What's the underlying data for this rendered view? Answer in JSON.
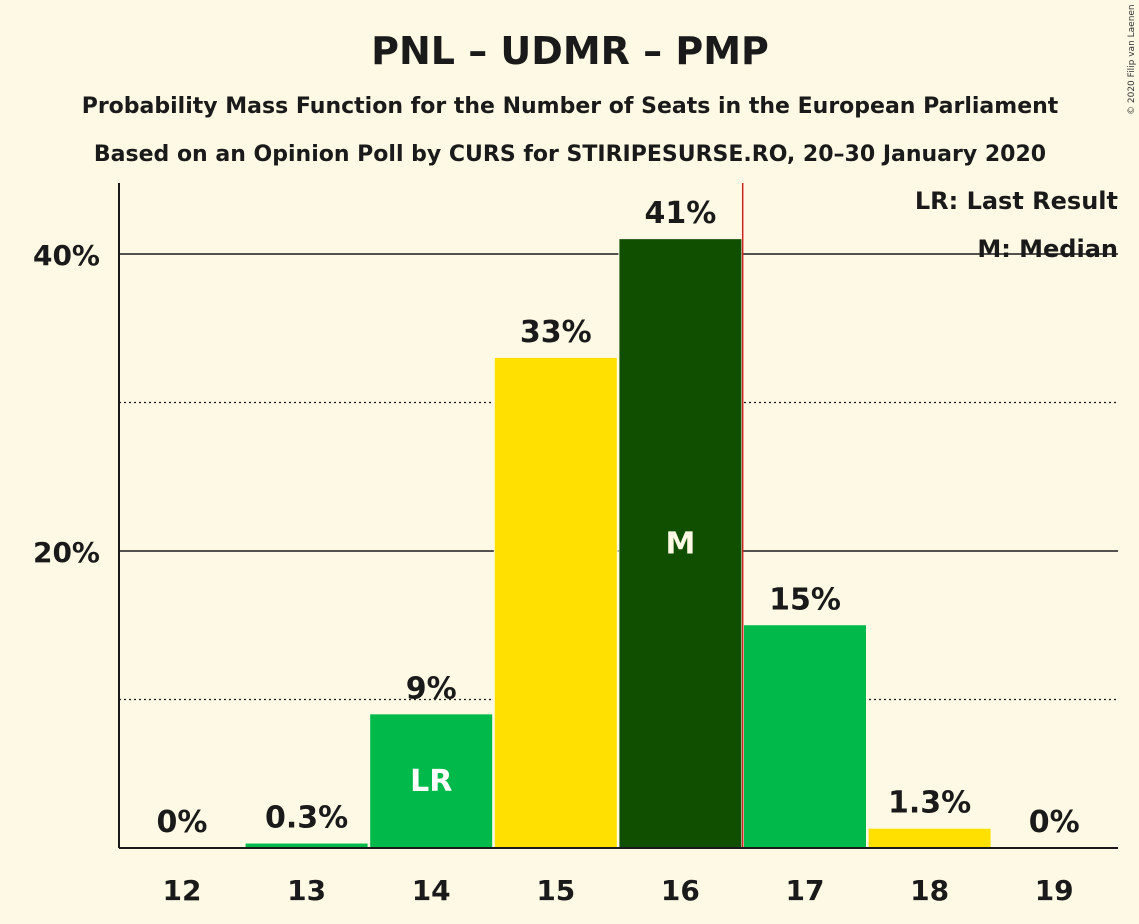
{
  "title": "PNL – UDMR – PMP",
  "subtitle1": "Probability Mass Function for the Number of Seats in the European Parliament",
  "subtitle2": "Based on an Opinion Poll by CURS for STIRIPESURSE.RO, 20–30 January 2020",
  "copyright": "© 2020 Filip van Laenen",
  "legend": {
    "last_result": "LR: Last Result",
    "median": "M: Median"
  },
  "colors": {
    "background": "#fef9e4",
    "green": "#00b94b",
    "yellow": "#ffe000",
    "dark_green": "#114f00",
    "last_result_line": "#cc2222"
  },
  "chart_data": {
    "type": "bar",
    "categories": [
      "12",
      "13",
      "14",
      "15",
      "16",
      "17",
      "18",
      "19"
    ],
    "values": [
      0,
      0.3,
      9,
      33,
      41,
      15,
      1.3,
      0
    ],
    "value_labels": [
      "0%",
      "0.3%",
      "9%",
      "33%",
      "41%",
      "15%",
      "1.3%",
      "0%"
    ],
    "bar_colors": [
      "#00b94b",
      "#00b94b",
      "#00b94b",
      "#ffe000",
      "#114f00",
      "#00b94b",
      "#ffe000",
      "#00b94b"
    ],
    "inbar_labels": {
      "14": "LR",
      "16": "M"
    },
    "last_result": 14,
    "median": 16,
    "ylim": [
      0,
      45
    ],
    "yticks": [
      20,
      40
    ],
    "ytick_labels": [
      "20%",
      "40%"
    ],
    "minor_gridlines": [
      10,
      30
    ],
    "xlabel": "",
    "ylabel": ""
  }
}
